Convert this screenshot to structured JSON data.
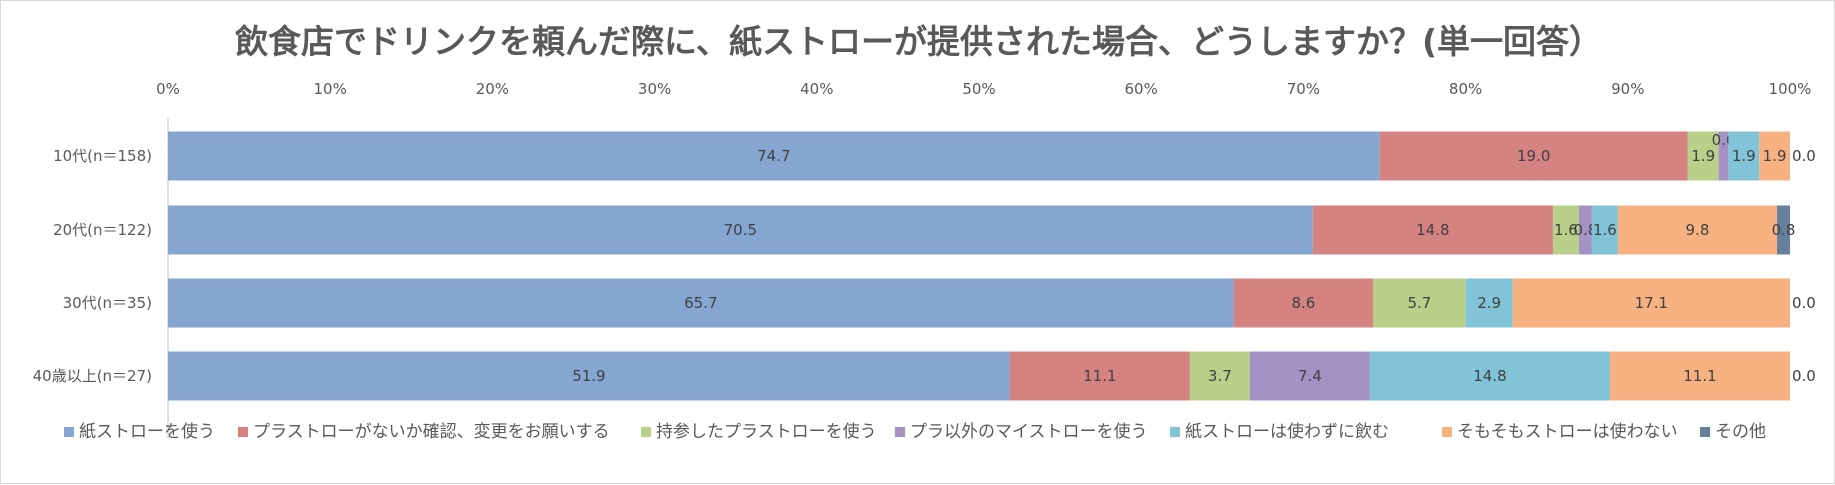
{
  "chart_data": {
    "type": "bar",
    "orientation": "horizontal",
    "stacked": "percent",
    "title": "飲食店でドリンクを頼んだ際に、紙ストローが提供された場合、どうしますか？(単一回答）",
    "xlabel": "",
    "ylabel": "",
    "xlim": [
      0,
      100
    ],
    "x_ticks": [
      "0%",
      "10%",
      "20%",
      "30%",
      "40%",
      "50%",
      "60%",
      "70%",
      "80%",
      "90%",
      "100%"
    ],
    "grid": false,
    "legend_position": "bottom",
    "categories": [
      "10代(n＝158)",
      "20代(n＝122)",
      "30代(n＝35)",
      "40歳以上(n＝27)"
    ],
    "series": [
      {
        "name": "紙ストローを使う",
        "color": "#84a6d1",
        "values": [
          74.7,
          70.5,
          65.7,
          51.9
        ],
        "labels": [
          "74.7",
          "70.5",
          "65.7",
          "51.9"
        ]
      },
      {
        "name": "プラストローがないか確認、変更をお願いする",
        "color": "#d48380",
        "values": [
          19.0,
          14.8,
          8.6,
          11.1
        ],
        "labels": [
          "19.0",
          "14.8",
          "8.6",
          "11.1"
        ]
      },
      {
        "name": "持参したプラストローを使う",
        "color": "#b9d08b",
        "values": [
          1.9,
          1.6,
          5.7,
          3.7
        ],
        "labels": [
          "1.9",
          "1.6",
          "5.7",
          "3.7"
        ]
      },
      {
        "name": "プラ以外のマイストローを使う",
        "color": "#a592c4",
        "values": [
          0.6,
          0.8,
          0.0,
          7.4
        ],
        "labels": [
          "0.6",
          "0.8",
          "0.0",
          "7.4"
        ]
      },
      {
        "name": "紙ストローは使わずに飲む",
        "color": "#82c4d7",
        "values": [
          1.9,
          1.6,
          2.9,
          14.8
        ],
        "labels": [
          "1.9",
          "1.6",
          "2.9",
          "14.8"
        ]
      },
      {
        "name": "そもそもストローは使わない",
        "color": "#f8b282",
        "values": [
          1.9,
          9.8,
          17.1,
          11.1
        ],
        "labels": [
          "1.9",
          "9.8",
          "17.1",
          "11.1"
        ]
      },
      {
        "name": "その他",
        "color": "#66809c",
        "values": [
          0.0,
          0.8,
          0.0,
          0.0
        ],
        "labels": [
          "0.0",
          "0.8",
          "0.0",
          "0.0"
        ]
      }
    ]
  }
}
